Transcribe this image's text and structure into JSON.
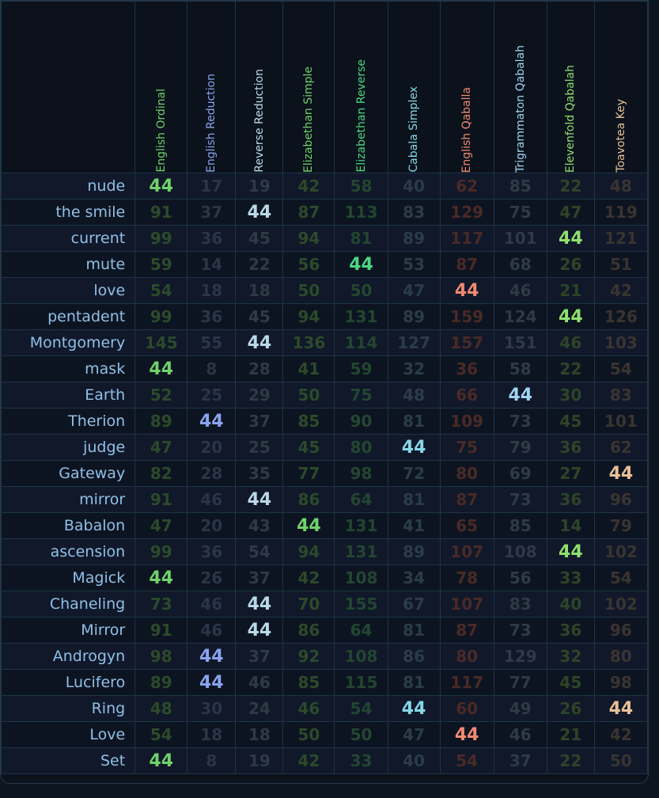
{
  "ciphers": [
    {
      "name": "English Ordinal",
      "color": "#6fd36a",
      "dim": "#2c4a2a"
    },
    {
      "name": "English Reduction",
      "color": "#8aa4ee",
      "dim": "#2a3548"
    },
    {
      "name": "Reverse Reduction",
      "color": "#b9d8e8",
      "dim": "#2e3a44"
    },
    {
      "name": "Elizabethan Simple",
      "color": "#6fd36a",
      "dim": "#2c4a2a"
    },
    {
      "name": "Elizabethan Reverse",
      "color": "#4cd882",
      "dim": "#234630"
    },
    {
      "name": "Cabala Simplex",
      "color": "#86d8e8",
      "dim": "#2b3c48"
    },
    {
      "name": "English Qaballa",
      "color": "#f08a70",
      "dim": "#4a2a26"
    },
    {
      "name": "Trigrammaton Qabalah",
      "color": "#a0d4f0",
      "dim": "#2e3a44"
    },
    {
      "name": "Elevenfold Qabalah",
      "color": "#90e070",
      "dim": "#2e4428"
    },
    {
      "name": "Toavotea Key",
      "color": "#e8c098",
      "dim": "#3a3430"
    }
  ],
  "rows": [
    {
      "word": "nude",
      "values": [
        44,
        17,
        19,
        42,
        58,
        40,
        62,
        85,
        22,
        48
      ]
    },
    {
      "word": "the smile",
      "values": [
        91,
        37,
        44,
        87,
        113,
        83,
        129,
        75,
        47,
        119
      ]
    },
    {
      "word": "current",
      "values": [
        99,
        36,
        45,
        94,
        81,
        89,
        117,
        101,
        44,
        121
      ]
    },
    {
      "word": "mute",
      "values": [
        59,
        14,
        22,
        56,
        44,
        53,
        87,
        68,
        26,
        51
      ]
    },
    {
      "word": "love",
      "values": [
        54,
        18,
        18,
        50,
        50,
        47,
        44,
        46,
        21,
        42
      ]
    },
    {
      "word": "pentadent",
      "values": [
        99,
        36,
        45,
        94,
        131,
        89,
        159,
        124,
        44,
        126
      ]
    },
    {
      "word": "Montgomery",
      "values": [
        145,
        55,
        44,
        136,
        114,
        127,
        157,
        151,
        46,
        103
      ]
    },
    {
      "word": "mask",
      "values": [
        44,
        8,
        28,
        41,
        59,
        32,
        36,
        58,
        22,
        54
      ]
    },
    {
      "word": "Earth",
      "values": [
        52,
        25,
        29,
        50,
        75,
        48,
        66,
        44,
        30,
        83
      ]
    },
    {
      "word": "Therion",
      "values": [
        89,
        44,
        37,
        85,
        90,
        81,
        109,
        73,
        45,
        101
      ]
    },
    {
      "word": "judge",
      "values": [
        47,
        20,
        25,
        45,
        80,
        44,
        75,
        79,
        36,
        62
      ]
    },
    {
      "word": "Gateway",
      "values": [
        82,
        28,
        35,
        77,
        98,
        72,
        80,
        69,
        27,
        44
      ]
    },
    {
      "word": "mirror",
      "values": [
        91,
        46,
        44,
        86,
        64,
        81,
        87,
        73,
        36,
        96
      ]
    },
    {
      "word": "Babalon",
      "values": [
        47,
        20,
        43,
        44,
        131,
        41,
        65,
        85,
        14,
        79
      ]
    },
    {
      "word": "ascension",
      "values": [
        99,
        36,
        54,
        94,
        131,
        89,
        107,
        108,
        44,
        102
      ]
    },
    {
      "word": "Magick",
      "values": [
        44,
        26,
        37,
        42,
        108,
        34,
        78,
        56,
        33,
        54
      ]
    },
    {
      "word": "Chaneling",
      "values": [
        73,
        46,
        44,
        70,
        155,
        67,
        107,
        83,
        40,
        102
      ]
    },
    {
      "word": "Mirror",
      "values": [
        91,
        46,
        44,
        86,
        64,
        81,
        87,
        73,
        36,
        96
      ]
    },
    {
      "word": "Androgyn",
      "values": [
        98,
        44,
        37,
        92,
        108,
        86,
        80,
        129,
        32,
        80
      ]
    },
    {
      "word": "Lucifero",
      "values": [
        89,
        44,
        46,
        85,
        115,
        81,
        117,
        77,
        45,
        98
      ]
    },
    {
      "word": "Ring",
      "values": [
        48,
        30,
        24,
        46,
        54,
        44,
        60,
        49,
        26,
        44
      ]
    },
    {
      "word": "Love",
      "values": [
        54,
        18,
        18,
        50,
        50,
        47,
        44,
        46,
        21,
        42
      ]
    },
    {
      "word": "Set",
      "values": [
        44,
        8,
        19,
        42,
        33,
        40,
        54,
        37,
        22,
        50
      ]
    }
  ],
  "highlight_value": 44
}
